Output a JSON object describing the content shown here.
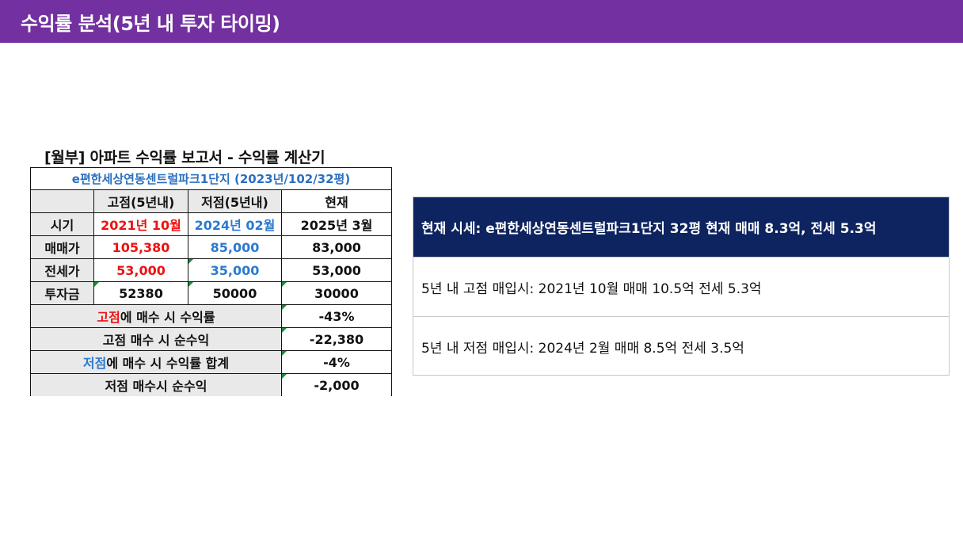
{
  "header": {
    "title": "수익률 분석(5년 내 투자 타이밍)"
  },
  "sheet": {
    "title": "[월부] 아파트 수익률 보고서 - 수익률 계산기",
    "apartment": "e편한세상연동센트럴파크1단지 (2023년/102/32평)",
    "columns": [
      "고점(5년내)",
      "저점(5년내)",
      "현재"
    ],
    "rows": [
      {
        "label": "시기",
        "high": "2021년 10월",
        "low": "2024년 02월",
        "current": "2025년 3월"
      },
      {
        "label": "매매가",
        "high": "105,380",
        "low": "85,000",
        "current": "83,000"
      },
      {
        "label": "전세가",
        "high": "53,000",
        "low": "35,000",
        "current": "53,000"
      },
      {
        "label": "투자금",
        "high": "52380",
        "low": "50000",
        "current": "30000"
      }
    ],
    "summary": [
      {
        "accent": "고점",
        "rest": "에 매수 시 수익률",
        "value": "-43%"
      },
      {
        "accent": "",
        "rest": "고점 매수 시 순수익",
        "value": "-22,380"
      },
      {
        "accent": "저점",
        "rest": "에 매수 시 수익률 합계",
        "value": "-4%"
      },
      {
        "accent": "",
        "rest": "저점 매수시 순수익",
        "value": "-2,000"
      }
    ]
  },
  "info": {
    "current": "현재 시세:  e편한세상연동센트럴파크1단지 32평 현재 매매 8.3억, 전세 5.3억",
    "high": "5년 내 고점 매입시: 2021년 10월 매매 10.5억 전세 5.3억",
    "low": "5년 내 저점 매입시: 2024년 2월 매매 8.5억 전세 3.5억"
  },
  "colors": {
    "header": "#7230a0",
    "current_row": "#0e2460",
    "high": "#ee1111",
    "low": "#2a7ad0"
  }
}
